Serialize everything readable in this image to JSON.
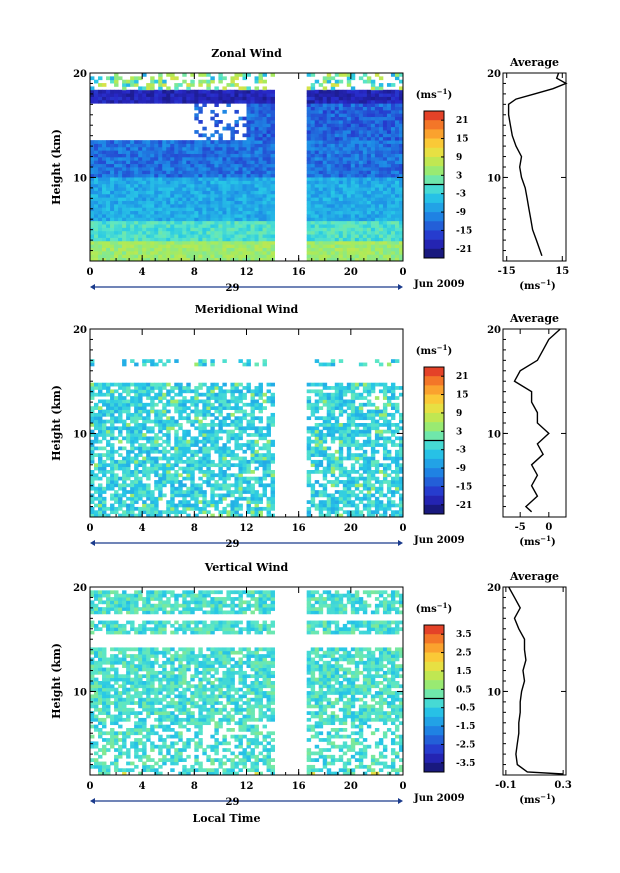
{
  "chart_data": [
    {
      "type": "heatmap",
      "title": "Zonal Wind",
      "ylabel": "Height (km)",
      "xlabel": "",
      "x_ticks": [
        "0",
        "4",
        "8",
        "12",
        "16",
        "20",
        "0"
      ],
      "y_ticks": [
        "10",
        "20"
      ],
      "ylim": [
        2,
        20
      ],
      "xlim": [
        0,
        24
      ],
      "date_label": "29",
      "month_label": "Jun 2009",
      "colorbar": {
        "unit_base": "(ms",
        "unit_exp": "−1",
        "unit_close": ")",
        "ticks": [
          "21",
          "15",
          "9",
          "3",
          "-3",
          "-9",
          "-15",
          "-21"
        ],
        "range": [
          -24,
          24
        ]
      },
      "average": {
        "title": "Average",
        "x_ticks": [
          "-15",
          "15"
        ],
        "xlim": [
          -17,
          17
        ],
        "y_ticks": [
          "10",
          "20"
        ],
        "xunit_base": "(ms",
        "xunit_exp": "−1",
        "xunit_close": ")",
        "height_km": [
          2.5,
          3,
          4,
          5,
          6,
          7,
          8,
          9,
          10,
          11,
          12,
          13,
          14,
          15,
          16,
          17,
          17.5,
          18,
          18.5,
          19,
          19.5,
          20
        ],
        "value": [
          4,
          3,
          1,
          -1,
          -2,
          -3,
          -4,
          -5,
          -7,
          -8,
          -7,
          -10,
          -12,
          -13,
          -14,
          -14,
          -10,
          0,
          10,
          17,
          12,
          13
        ]
      }
    },
    {
      "type": "heatmap",
      "title": "Meridional Wind",
      "ylabel": "Height (km)",
      "xlabel": "",
      "x_ticks": [
        "0",
        "4",
        "8",
        "12",
        "16",
        "20",
        "0"
      ],
      "y_ticks": [
        "10",
        "20"
      ],
      "ylim": [
        2,
        20
      ],
      "xlim": [
        0,
        24
      ],
      "date_label": "29",
      "month_label": "Jun 2009",
      "colorbar": {
        "unit_base": "(ms",
        "unit_exp": "−1",
        "unit_close": ")",
        "ticks": [
          "21",
          "15",
          "9",
          "3",
          "-3",
          "-9",
          "-15",
          "-21"
        ],
        "range": [
          -24,
          24
        ]
      },
      "average": {
        "title": "Average",
        "x_ticks": [
          "-5",
          "0"
        ],
        "xlim": [
          -8,
          3
        ],
        "y_ticks": [
          "10",
          "20"
        ],
        "xunit_base": "(ms",
        "xunit_exp": "−1",
        "xunit_close": ")",
        "height_km": [
          2.5,
          3,
          4,
          5,
          6,
          7,
          8,
          9,
          10,
          11,
          12,
          13,
          14,
          15,
          16,
          17,
          18,
          19,
          20
        ],
        "value": [
          -3,
          -4,
          -2,
          -3,
          -2,
          -3,
          -1,
          -2,
          0,
          -2,
          -2,
          -3,
          -3,
          -6,
          -5,
          -2,
          -1,
          0,
          2
        ]
      }
    },
    {
      "type": "heatmap",
      "title": "Vertical Wind",
      "ylabel": "Height (km)",
      "xlabel": "Local Time",
      "x_ticks": [
        "0",
        "4",
        "8",
        "12",
        "16",
        "20",
        "0"
      ],
      "y_ticks": [
        "10",
        "20"
      ],
      "ylim": [
        2,
        20
      ],
      "xlim": [
        0,
        24
      ],
      "date_label": "29",
      "month_label": "Jun 2009",
      "colorbar": {
        "unit_base": "(ms",
        "unit_exp": "−1",
        "unit_close": ")",
        "ticks": [
          "3.5",
          "2.5",
          "1.5",
          "0.5",
          "-0.5",
          "-1.5",
          "-2.5",
          "-3.5"
        ],
        "range": [
          -4,
          4
        ]
      },
      "average": {
        "title": "Average",
        "x_ticks": [
          "-0.1",
          "0.3"
        ],
        "xlim": [
          -0.12,
          0.32
        ],
        "y_ticks": [
          "10",
          "20"
        ],
        "xunit_base": "(ms",
        "xunit_exp": "−1",
        "xunit_close": ")",
        "height_km": [
          2.1,
          2.3,
          3,
          4,
          5,
          6,
          7,
          8,
          9,
          10,
          11,
          12,
          13,
          14,
          15,
          16,
          17,
          18,
          19,
          20
        ],
        "value": [
          0.3,
          0.05,
          -0.02,
          -0.03,
          -0.02,
          -0.01,
          -0.01,
          0,
          0,
          0.01,
          0.03,
          0.02,
          0.04,
          0.03,
          0.03,
          -0.01,
          -0.04,
          0.0,
          -0.04,
          -0.08
        ]
      }
    }
  ]
}
